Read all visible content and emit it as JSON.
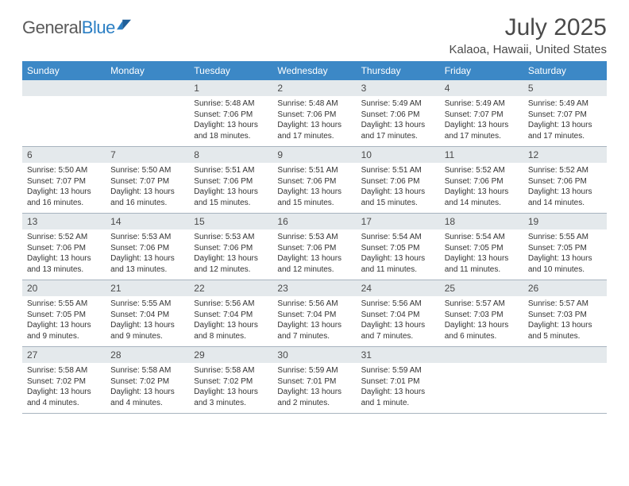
{
  "logo": {
    "part1": "General",
    "part2": "Blue"
  },
  "title": "July 2025",
  "location": "Kalaoa, Hawaii, United States",
  "colors": {
    "header_bg": "#3c88c6",
    "header_text": "#ffffff",
    "daynum_bg": "#e4e9ec",
    "text": "#4a4a4a",
    "brand_gray": "#5a5a5a",
    "brand_blue": "#2b7fc4",
    "border": "#a8b4bf"
  },
  "days_of_week": [
    "Sunday",
    "Monday",
    "Tuesday",
    "Wednesday",
    "Thursday",
    "Friday",
    "Saturday"
  ],
  "weeks": [
    [
      {
        "n": "",
        "sr": "",
        "ss": "",
        "dl": ""
      },
      {
        "n": "",
        "sr": "",
        "ss": "",
        "dl": ""
      },
      {
        "n": "1",
        "sr": "5:48 AM",
        "ss": "7:06 PM",
        "dl": "13 hours and 18 minutes."
      },
      {
        "n": "2",
        "sr": "5:48 AM",
        "ss": "7:06 PM",
        "dl": "13 hours and 17 minutes."
      },
      {
        "n": "3",
        "sr": "5:49 AM",
        "ss": "7:06 PM",
        "dl": "13 hours and 17 minutes."
      },
      {
        "n": "4",
        "sr": "5:49 AM",
        "ss": "7:07 PM",
        "dl": "13 hours and 17 minutes."
      },
      {
        "n": "5",
        "sr": "5:49 AM",
        "ss": "7:07 PM",
        "dl": "13 hours and 17 minutes."
      }
    ],
    [
      {
        "n": "6",
        "sr": "5:50 AM",
        "ss": "7:07 PM",
        "dl": "13 hours and 16 minutes."
      },
      {
        "n": "7",
        "sr": "5:50 AM",
        "ss": "7:07 PM",
        "dl": "13 hours and 16 minutes."
      },
      {
        "n": "8",
        "sr": "5:51 AM",
        "ss": "7:06 PM",
        "dl": "13 hours and 15 minutes."
      },
      {
        "n": "9",
        "sr": "5:51 AM",
        "ss": "7:06 PM",
        "dl": "13 hours and 15 minutes."
      },
      {
        "n": "10",
        "sr": "5:51 AM",
        "ss": "7:06 PM",
        "dl": "13 hours and 15 minutes."
      },
      {
        "n": "11",
        "sr": "5:52 AM",
        "ss": "7:06 PM",
        "dl": "13 hours and 14 minutes."
      },
      {
        "n": "12",
        "sr": "5:52 AM",
        "ss": "7:06 PM",
        "dl": "13 hours and 14 minutes."
      }
    ],
    [
      {
        "n": "13",
        "sr": "5:52 AM",
        "ss": "7:06 PM",
        "dl": "13 hours and 13 minutes."
      },
      {
        "n": "14",
        "sr": "5:53 AM",
        "ss": "7:06 PM",
        "dl": "13 hours and 13 minutes."
      },
      {
        "n": "15",
        "sr": "5:53 AM",
        "ss": "7:06 PM",
        "dl": "13 hours and 12 minutes."
      },
      {
        "n": "16",
        "sr": "5:53 AM",
        "ss": "7:06 PM",
        "dl": "13 hours and 12 minutes."
      },
      {
        "n": "17",
        "sr": "5:54 AM",
        "ss": "7:05 PM",
        "dl": "13 hours and 11 minutes."
      },
      {
        "n": "18",
        "sr": "5:54 AM",
        "ss": "7:05 PM",
        "dl": "13 hours and 11 minutes."
      },
      {
        "n": "19",
        "sr": "5:55 AM",
        "ss": "7:05 PM",
        "dl": "13 hours and 10 minutes."
      }
    ],
    [
      {
        "n": "20",
        "sr": "5:55 AM",
        "ss": "7:05 PM",
        "dl": "13 hours and 9 minutes."
      },
      {
        "n": "21",
        "sr": "5:55 AM",
        "ss": "7:04 PM",
        "dl": "13 hours and 9 minutes."
      },
      {
        "n": "22",
        "sr": "5:56 AM",
        "ss": "7:04 PM",
        "dl": "13 hours and 8 minutes."
      },
      {
        "n": "23",
        "sr": "5:56 AM",
        "ss": "7:04 PM",
        "dl": "13 hours and 7 minutes."
      },
      {
        "n": "24",
        "sr": "5:56 AM",
        "ss": "7:04 PM",
        "dl": "13 hours and 7 minutes."
      },
      {
        "n": "25",
        "sr": "5:57 AM",
        "ss": "7:03 PM",
        "dl": "13 hours and 6 minutes."
      },
      {
        "n": "26",
        "sr": "5:57 AM",
        "ss": "7:03 PM",
        "dl": "13 hours and 5 minutes."
      }
    ],
    [
      {
        "n": "27",
        "sr": "5:58 AM",
        "ss": "7:02 PM",
        "dl": "13 hours and 4 minutes."
      },
      {
        "n": "28",
        "sr": "5:58 AM",
        "ss": "7:02 PM",
        "dl": "13 hours and 4 minutes."
      },
      {
        "n": "29",
        "sr": "5:58 AM",
        "ss": "7:02 PM",
        "dl": "13 hours and 3 minutes."
      },
      {
        "n": "30",
        "sr": "5:59 AM",
        "ss": "7:01 PM",
        "dl": "13 hours and 2 minutes."
      },
      {
        "n": "31",
        "sr": "5:59 AM",
        "ss": "7:01 PM",
        "dl": "13 hours and 1 minute."
      },
      {
        "n": "",
        "sr": "",
        "ss": "",
        "dl": ""
      },
      {
        "n": "",
        "sr": "",
        "ss": "",
        "dl": ""
      }
    ]
  ],
  "labels": {
    "sunrise": "Sunrise:",
    "sunset": "Sunset:",
    "daylight": "Daylight:"
  }
}
